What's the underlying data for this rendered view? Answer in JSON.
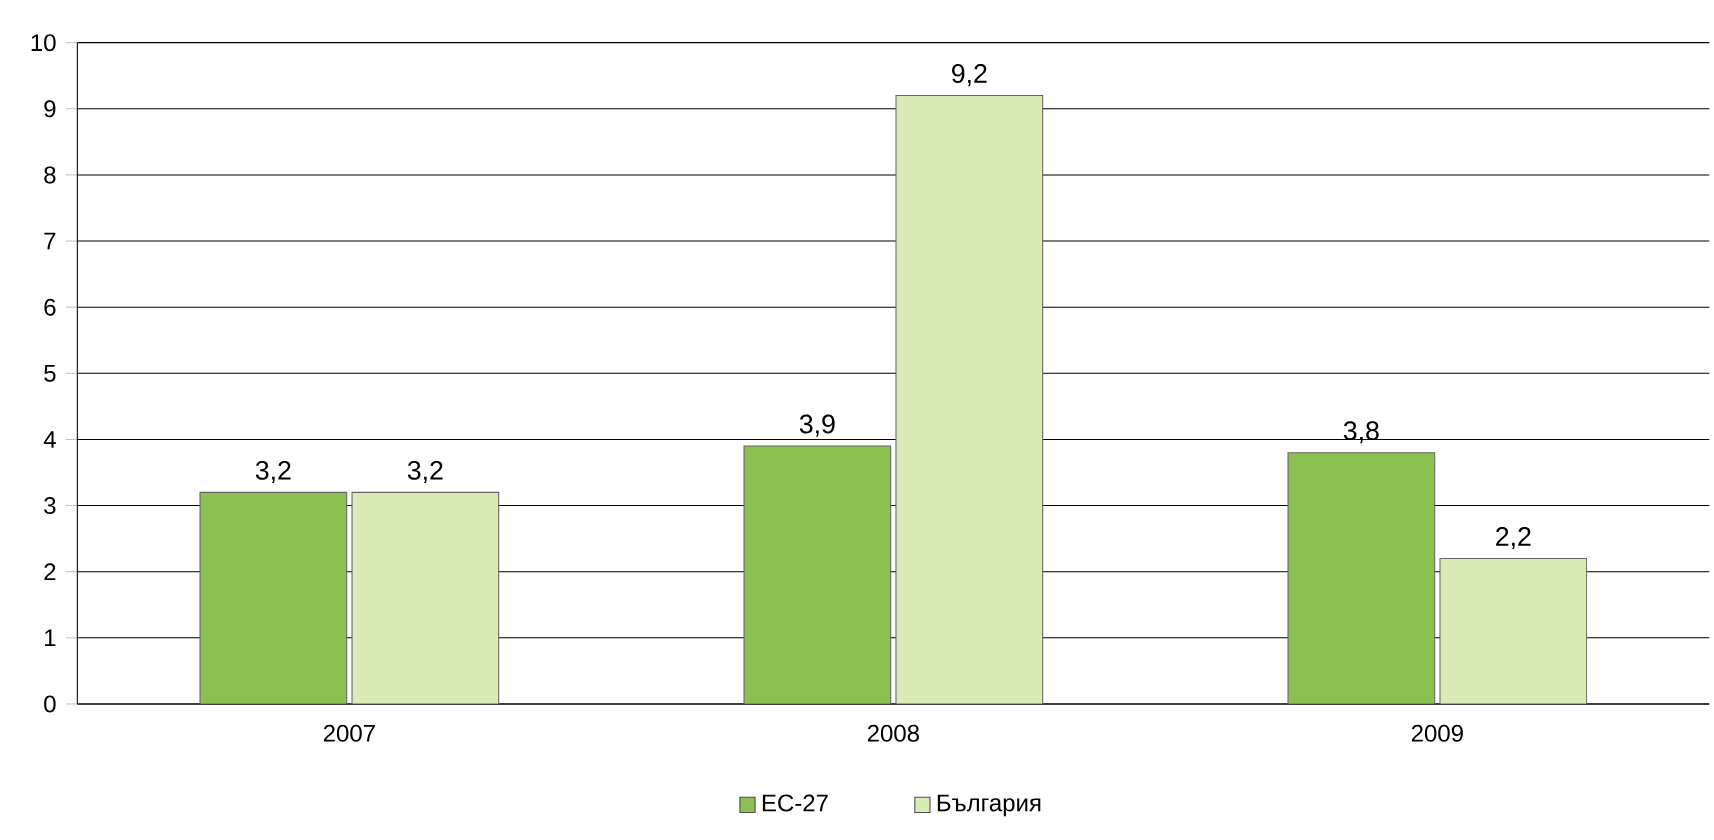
{
  "chart_data": {
    "type": "bar",
    "categories": [
      "2007",
      "2008",
      "2009"
    ],
    "series": [
      {
        "name": "ЕС-27",
        "color": "#8cc152",
        "values": [
          3.2,
          3.9,
          3.8
        ],
        "value_labels": [
          "3,2",
          "3,9",
          "3,8"
        ]
      },
      {
        "name": "България",
        "color": "#d8ebb5",
        "values": [
          3.2,
          9.2,
          2.2
        ],
        "value_labels": [
          "3,2",
          "9,2",
          "2,2"
        ]
      }
    ],
    "ylim": [
      0,
      10
    ],
    "yticks": [
      0,
      1,
      2,
      3,
      4,
      5,
      6,
      7,
      8,
      9,
      10
    ],
    "grid": "y",
    "legend": "bottom"
  }
}
